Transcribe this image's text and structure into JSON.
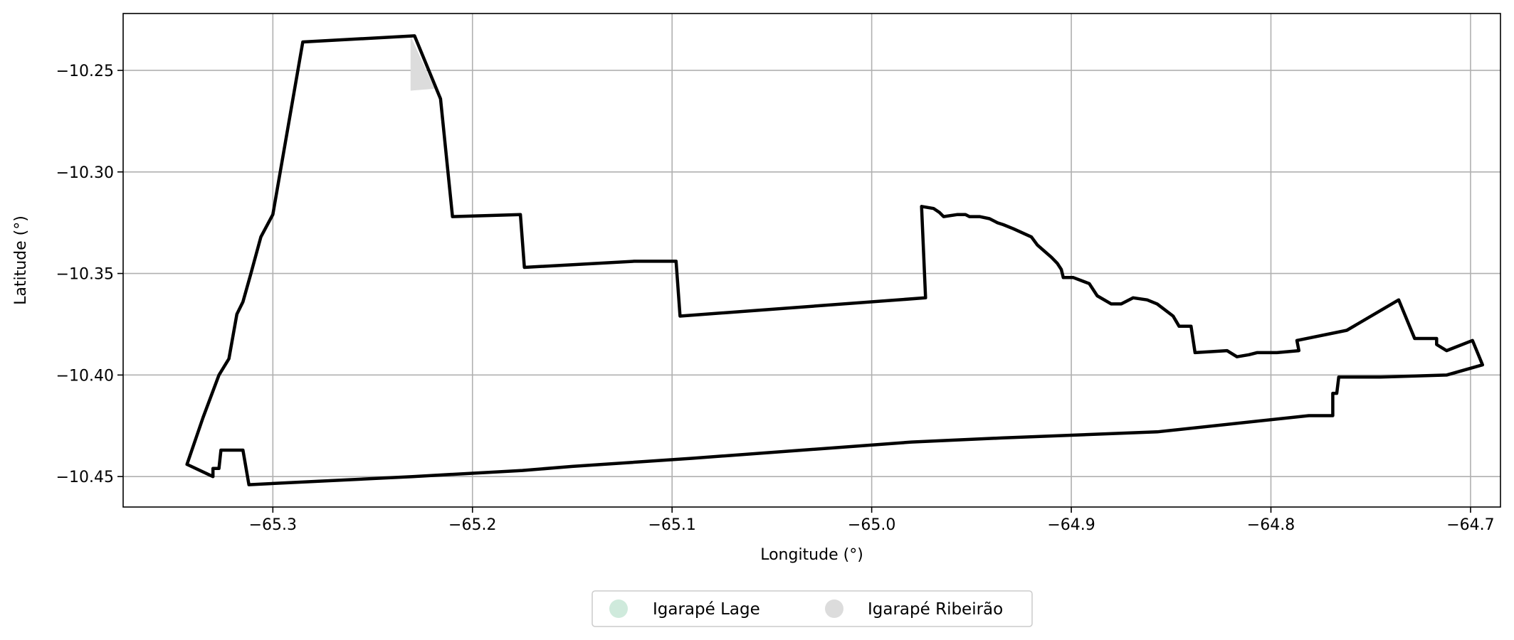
{
  "chart_data": {
    "type": "map",
    "xlabel": "Longitude (°)",
    "ylabel": "Latitude (°)",
    "xlim": [
      -65.375,
      -64.685
    ],
    "ylim": [
      -10.465,
      -10.222
    ],
    "xticks": [
      -65.3,
      -65.2,
      -65.1,
      -65.0,
      -64.9,
      -64.8,
      -64.7
    ],
    "xtick_labels": [
      "−65.3",
      "−65.2",
      "−65.1",
      "−65.0",
      "−64.9",
      "−64.8",
      "−64.7"
    ],
    "yticks": [
      -10.25,
      -10.3,
      -10.35,
      -10.4,
      -10.45
    ],
    "ytick_labels": [
      "−10.25",
      "−10.30",
      "−10.35",
      "−10.40",
      "−10.45"
    ],
    "grid": true,
    "legend_position": "bottom-center",
    "legend": [
      {
        "name": "Igarapé Lage",
        "color": "#cfeadc"
      },
      {
        "name": "Igarapé Ribeirão",
        "color": "#dcdcdc"
      }
    ],
    "boundary": {
      "stroke": "#000000",
      "points": [
        [
          -65.285,
          -10.236
        ],
        [
          -65.229,
          -10.233
        ],
        [
          -65.216,
          -10.264
        ],
        [
          -65.21,
          -10.322
        ],
        [
          -65.176,
          -10.321
        ],
        [
          -65.174,
          -10.347
        ],
        [
          -65.119,
          -10.344
        ],
        [
          -65.098,
          -10.344
        ],
        [
          -65.096,
          -10.371
        ],
        [
          -64.973,
          -10.362
        ],
        [
          -64.975,
          -10.317
        ],
        [
          -64.969,
          -10.318
        ],
        [
          -64.966,
          -10.32
        ],
        [
          -64.964,
          -10.322
        ],
        [
          -64.957,
          -10.321
        ],
        [
          -64.953,
          -10.321
        ],
        [
          -64.951,
          -10.322
        ],
        [
          -64.946,
          -10.322
        ],
        [
          -64.941,
          -10.323
        ],
        [
          -64.937,
          -10.325
        ],
        [
          -64.934,
          -10.326
        ],
        [
          -64.929,
          -10.328
        ],
        [
          -64.92,
          -10.332
        ],
        [
          -64.917,
          -10.336
        ],
        [
          -64.91,
          -10.342
        ],
        [
          -64.907,
          -10.345
        ],
        [
          -64.905,
          -10.348
        ],
        [
          -64.904,
          -10.352
        ],
        [
          -64.899,
          -10.352
        ],
        [
          -64.891,
          -10.355
        ],
        [
          -64.887,
          -10.361
        ],
        [
          -64.88,
          -10.365
        ],
        [
          -64.875,
          -10.365
        ],
        [
          -64.869,
          -10.362
        ],
        [
          -64.862,
          -10.363
        ],
        [
          -64.857,
          -10.365
        ],
        [
          -64.849,
          -10.371
        ],
        [
          -64.846,
          -10.376
        ],
        [
          -64.84,
          -10.376
        ],
        [
          -64.838,
          -10.389
        ],
        [
          -64.822,
          -10.388
        ],
        [
          -64.817,
          -10.391
        ],
        [
          -64.811,
          -10.39
        ],
        [
          -64.807,
          -10.389
        ],
        [
          -64.802,
          -10.389
        ],
        [
          -64.797,
          -10.389
        ],
        [
          -64.786,
          -10.388
        ],
        [
          -64.787,
          -10.383
        ],
        [
          -64.762,
          -10.378
        ],
        [
          -64.736,
          -10.363
        ],
        [
          -64.728,
          -10.382
        ],
        [
          -64.717,
          -10.382
        ],
        [
          -64.717,
          -10.385
        ],
        [
          -64.712,
          -10.388
        ],
        [
          -64.699,
          -10.383
        ],
        [
          -64.694,
          -10.395
        ],
        [
          -64.712,
          -10.4
        ],
        [
          -64.745,
          -10.401
        ],
        [
          -64.766,
          -10.401
        ],
        [
          -64.767,
          -10.409
        ],
        [
          -64.769,
          -10.409
        ],
        [
          -64.769,
          -10.42
        ],
        [
          -64.781,
          -10.42
        ],
        [
          -64.857,
          -10.428
        ],
        [
          -64.935,
          -10.431
        ],
        [
          -64.98,
          -10.433
        ],
        [
          -65.09,
          -10.441
        ],
        [
          -65.15,
          -10.445
        ],
        [
          -65.175,
          -10.447
        ],
        [
          -65.23,
          -10.45
        ],
        [
          -65.312,
          -10.454
        ],
        [
          -65.315,
          -10.437
        ],
        [
          -65.326,
          -10.437
        ],
        [
          -65.327,
          -10.446
        ],
        [
          -65.33,
          -10.446
        ],
        [
          -65.33,
          -10.45
        ],
        [
          -65.343,
          -10.444
        ],
        [
          -65.335,
          -10.421
        ],
        [
          -65.327,
          -10.4
        ],
        [
          -65.322,
          -10.392
        ],
        [
          -65.318,
          -10.37
        ],
        [
          -65.315,
          -10.364
        ],
        [
          -65.311,
          -10.35
        ],
        [
          -65.306,
          -10.332
        ],
        [
          -65.3,
          -10.321
        ],
        [
          -65.285,
          -10.236
        ]
      ]
    },
    "regions": [
      {
        "name": "Igarapé Ribeirão",
        "color": "#dcdcdc",
        "points": [
          [
            -65.231,
            -10.233
          ],
          [
            -65.219,
            -10.259
          ],
          [
            -65.231,
            -10.26
          ]
        ]
      }
    ]
  }
}
